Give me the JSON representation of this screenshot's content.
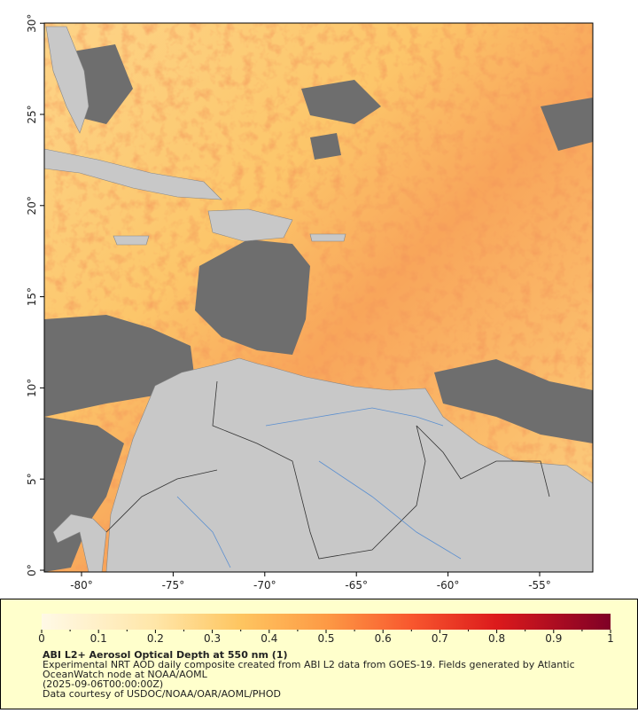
{
  "map": {
    "lat_labels": [
      "0°",
      "5°",
      "10°",
      "15°",
      "20°",
      "25°",
      "30°"
    ],
    "lon_labels": [
      "-80°",
      "-75°",
      "-70°",
      "-65°",
      "-60°",
      "-55°"
    ]
  },
  "colorbar": {
    "ticks": [
      "0",
      "0.1",
      "0.2",
      "0.3",
      "0.4",
      "0.5",
      "0.6",
      "0.7",
      "0.8",
      "0.9",
      "1"
    ]
  },
  "caption": {
    "title": "ABI L2+ Aerosol Optical Depth at 550 nm (1)",
    "lines": [
      "Experimental NRT AOD daily composite created from ABI L2 data from GOES-19. Fields generated by Atlantic",
      "OceanWatch node at NOAA/AOML",
      "(2025-09-06T00:00:00Z)",
      "Data courtesy of USDOC/NOAA/OAR/AOML/PHOD"
    ]
  }
}
